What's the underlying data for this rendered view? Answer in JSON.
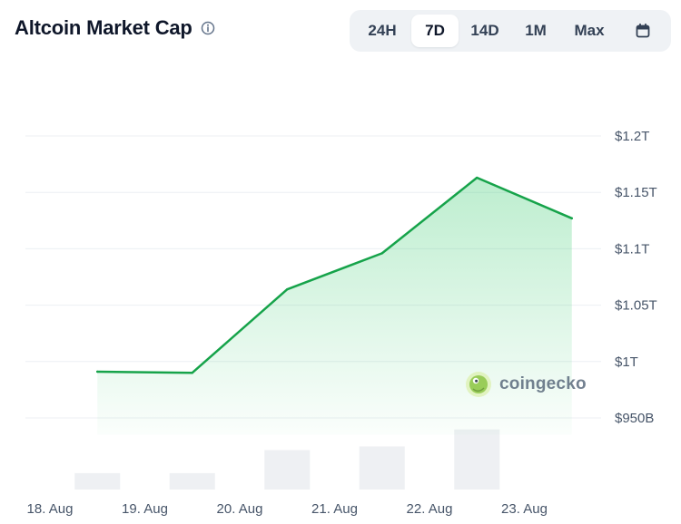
{
  "header": {
    "title": "Altcoin Market Cap",
    "info_icon": "info-circle-icon"
  },
  "range_tabs": {
    "items": [
      "24H",
      "7D",
      "14D",
      "1M",
      "Max"
    ],
    "active": "7D",
    "calendar_icon": "calendar-icon"
  },
  "watermark": {
    "text": "coingecko",
    "logo_icon": "coingecko-logo-icon"
  },
  "colors": {
    "line": "#16a34a",
    "area_top": "#22c55e",
    "volume_bar": "#eef0f3",
    "grid": "#eceff3"
  },
  "chart_data": {
    "type": "area",
    "x": [
      "18.4 Aug",
      "19.4 Aug",
      "20.4 Aug",
      "21.4 Aug",
      "22.4 Aug",
      "23.4 Aug"
    ],
    "x_ticks": [
      "18. Aug",
      "19. Aug",
      "20. Aug",
      "21. Aug",
      "22. Aug",
      "23. Aug"
    ],
    "series": [
      {
        "values": [
          991,
          990,
          1064,
          1096,
          1163,
          1127
        ]
      }
    ],
    "points_x_days": [
      18.5,
      19.5,
      20.5,
      21.5,
      22.5,
      23.5
    ],
    "volume_bars_x_days": [
      18.5,
      19.5,
      20.5,
      21.5,
      22.5
    ],
    "volume_relative": [
      0.27,
      0.27,
      0.65,
      0.71,
      0.99
    ],
    "y_unit": "B",
    "y_ticks": [
      "$950B",
      "$1T",
      "$1.05T",
      "$1.1T",
      "$1.15T",
      "$1.2T"
    ],
    "y_tick_values": [
      950,
      1000,
      1050,
      1100,
      1150,
      1200
    ],
    "ylim": [
      900,
      1200
    ],
    "grid": true,
    "legend": "none"
  }
}
